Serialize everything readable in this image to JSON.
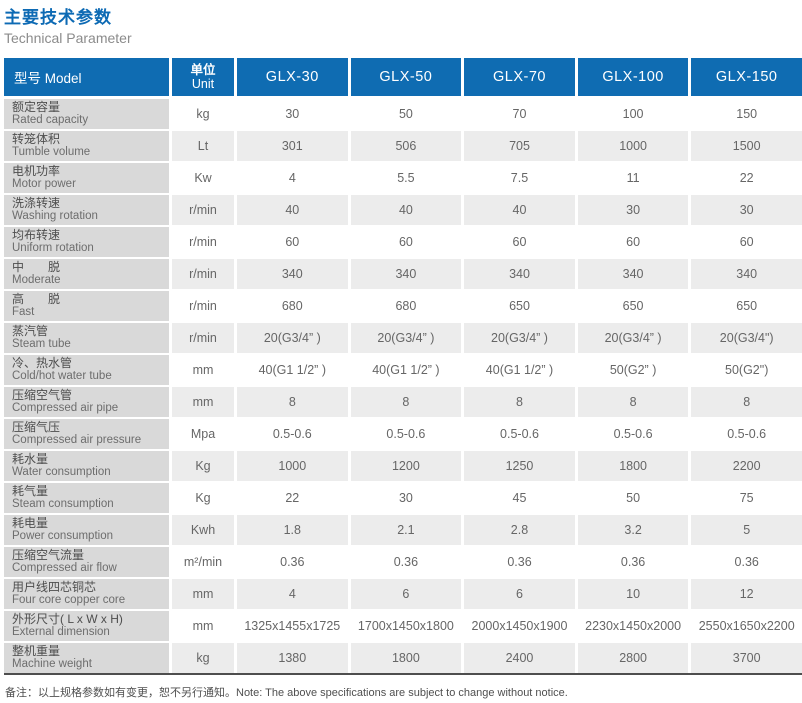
{
  "page": {
    "title_zh": "主要技术参数",
    "title_en": "Technical Parameter",
    "note": "备注：以上规格参数如有变更，恕不另行通知。Note: The above specifications are subject to change without notice."
  },
  "colors": {
    "header_blue": "#0f6cb2",
    "title_blue": "#0d6ab4",
    "label_column_gray": "#d9d9d9",
    "stripe_row_gray": "#ececec",
    "table_bottom_rule": "#4e4e4e"
  },
  "table": {
    "model_header": "型号 Model",
    "unit_header_zh": "单位",
    "unit_header_en": "Unit",
    "models": [
      "GLX-30",
      "GLX-50",
      "GLX-70",
      "GLX-100",
      "GLX-150"
    ],
    "rows": [
      {
        "label_zh": "额定容量",
        "label_en": "Rated capacity",
        "unit": "kg",
        "values": [
          "30",
          "50",
          "70",
          "100",
          "150"
        ]
      },
      {
        "label_zh": "转笼体积",
        "label_en": "Tumble volume",
        "unit": "Lt",
        "values": [
          "301",
          "506",
          "705",
          "1000",
          "1500"
        ]
      },
      {
        "label_zh": "电机功率",
        "label_en": "Motor power",
        "unit": "Kw",
        "values": [
          "4",
          "5.5",
          "7.5",
          "11",
          "22"
        ]
      },
      {
        "label_zh": "洗涤转速",
        "label_en": "Washing rotation",
        "unit": "r/min",
        "values": [
          "40",
          "40",
          "40",
          "30",
          "30"
        ]
      },
      {
        "label_zh": "均布转速",
        "label_en": "Uniform rotation",
        "unit": "r/min",
        "values": [
          "60",
          "60",
          "60",
          "60",
          "60"
        ]
      },
      {
        "label_zh": "中　　脱",
        "label_en": "Moderate",
        "unit": "r/min",
        "values": [
          "340",
          "340",
          "340",
          "340",
          "340"
        ]
      },
      {
        "label_zh": "高　　脱",
        "label_en": "Fast",
        "unit": "r/min",
        "values": [
          "680",
          "680",
          "650",
          "650",
          "650"
        ]
      },
      {
        "label_zh": "蒸汽管",
        "label_en": "Steam tube",
        "unit": "r/min",
        "values": [
          "20(G3/4” )",
          "20(G3/4” )",
          "20(G3/4” )",
          "20(G3/4” )",
          "20(G3/4\")"
        ]
      },
      {
        "label_zh": "冷、热水管",
        "label_en": "Cold/hot water tube",
        "unit": "mm",
        "values": [
          "40(G1 1/2” )",
          "40(G1 1/2” )",
          "40(G1 1/2” )",
          "50(G2” )",
          "50(G2\")"
        ]
      },
      {
        "label_zh": "压缩空气管",
        "label_en": "Compressed air pipe",
        "unit": "mm",
        "values": [
          "8",
          "8",
          "8",
          "8",
          "8"
        ]
      },
      {
        "label_zh": "压缩气压",
        "label_en": "Compressed air pressure",
        "unit": "Mpa",
        "values": [
          "0.5-0.6",
          "0.5-0.6",
          "0.5-0.6",
          "0.5-0.6",
          "0.5-0.6"
        ]
      },
      {
        "label_zh": "耗水量",
        "label_en": "Water consumption",
        "unit": "Kg",
        "values": [
          "1000",
          "1200",
          "1250",
          "1800",
          "2200"
        ]
      },
      {
        "label_zh": "耗气量",
        "label_en": "Steam consumption",
        "unit": "Kg",
        "values": [
          "22",
          "30",
          "45",
          "50",
          "75"
        ]
      },
      {
        "label_zh": "耗电量",
        "label_en": "Power consumption",
        "unit": "Kwh",
        "values": [
          "1.8",
          "2.1",
          "2.8",
          "3.2",
          "5"
        ]
      },
      {
        "label_zh": "压缩空气流量",
        "label_en": "Compressed air flow",
        "unit": "m²/min",
        "values": [
          "0.36",
          "0.36",
          "0.36",
          "0.36",
          "0.36"
        ]
      },
      {
        "label_zh": "用户线四芯铜芯",
        "label_en": "Four core copper core",
        "unit": "mm",
        "values": [
          "4",
          "6",
          "6",
          "10",
          "12"
        ]
      },
      {
        "label_zh": "外形尺寸( L x W x H)",
        "label_en": "External dimension",
        "unit": "mm",
        "values": [
          "1325x1455x1725",
          "1700x1450x1800",
          "2000x1450x1900",
          "2230x1450x2000",
          "2550x1650x2200"
        ]
      },
      {
        "label_zh": "整机重量",
        "label_en": "Machine weight",
        "unit": "kg",
        "values": [
          "1380",
          "1800",
          "2400",
          "2800",
          "3700"
        ]
      }
    ]
  }
}
